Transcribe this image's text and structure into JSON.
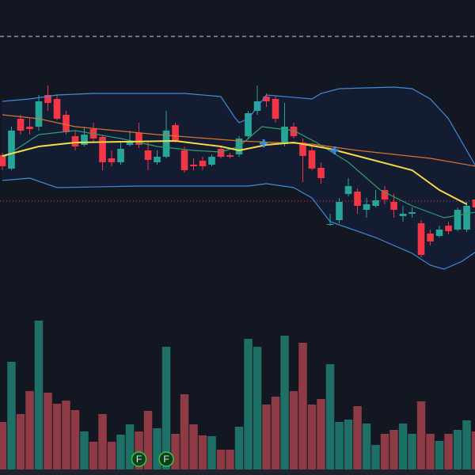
{
  "chart_data": {
    "type": "candlestick",
    "xlim": [
      -0.26,
      51.91
    ],
    "ylim": [
      0,
      600
    ],
    "up_color": "#26a69a",
    "down_color": "#f23645",
    "volume_up_color": "#1e6f66",
    "volume_down_color": "#8e3b45",
    "open": [
      404,
      387,
      450,
      440,
      440,
      480,
      475,
      455,
      428,
      417,
      437,
      427,
      400,
      395,
      417,
      432,
      410,
      395,
      402,
      442,
      410,
      392,
      397,
      392,
      412,
      404,
      405,
      428,
      460,
      478,
      475,
      418,
      440,
      420,
      410,
      388,
      317,
      322,
      355,
      358,
      335,
      340,
      360,
      345,
      327,
      330,
      318,
      305,
      302,
      315,
      310,
      310,
      348
    ],
    "high": [
      407,
      440,
      455,
      450,
      480,
      492,
      480,
      460,
      435,
      440,
      445,
      430,
      410,
      420,
      435,
      445,
      420,
      410,
      460,
      445,
      415,
      400,
      402,
      405,
      415,
      407,
      428,
      460,
      492,
      482,
      478,
      470,
      445,
      425,
      415,
      395,
      330,
      350,
      375,
      362,
      350,
      360,
      365,
      355,
      340,
      338,
      322,
      310,
      315,
      320,
      338,
      345,
      352
    ],
    "low": [
      385,
      385,
      430,
      430,
      435,
      460,
      448,
      430,
      410,
      415,
      420,
      385,
      390,
      392,
      415,
      413,
      385,
      392,
      400,
      420,
      382,
      385,
      385,
      390,
      400,
      400,
      402,
      425,
      455,
      465,
      445,
      415,
      425,
      370,
      385,
      368,
      315,
      318,
      352,
      330,
      325,
      338,
      342,
      325,
      320,
      325,
      275,
      290,
      300,
      304,
      308,
      307,
      334
    ],
    "close": [
      390,
      435,
      435,
      437,
      472,
      470,
      450,
      433,
      415,
      430,
      425,
      395,
      395,
      412,
      422,
      417,
      398,
      402,
      435,
      422,
      385,
      390,
      390,
      402,
      402,
      402,
      425,
      457,
      472,
      472,
      450,
      440,
      428,
      403,
      387,
      375,
      317,
      345,
      365,
      340,
      342,
      347,
      348,
      335,
      330,
      332,
      278,
      295,
      310,
      308,
      335,
      340,
      338
    ],
    "volume": [
      60,
      136,
      70,
      99,
      188,
      97,
      83,
      87,
      75,
      48,
      35,
      70,
      35,
      44,
      57,
      48,
      74,
      52,
      155,
      45,
      95,
      57,
      43,
      42,
      25,
      25,
      54,
      165,
      155,
      82,
      92,
      169,
      99,
      160,
      82,
      89,
      133,
      60,
      63,
      80,
      58,
      31,
      45,
      50,
      58,
      45,
      86,
      45,
      36,
      45,
      50,
      62,
      48
    ],
    "volume_ylim": [
      0,
      200
    ],
    "lines": [
      {
        "color": "#3d8bd9",
        "x": [
          0,
          3,
          6,
          10,
          20,
          24,
          25.5,
          26,
          27,
          29,
          34,
          35,
          37,
          43,
          45,
          47,
          49,
          51,
          52
        ],
        "values": [
          472,
          475,
          480,
          482,
          482,
          478,
          452,
          445,
          450,
          480,
          475,
          482,
          488,
          490,
          488,
          475,
          450,
          410,
          390
        ]
      },
      {
        "color": "#3d8bd9",
        "x": [
          0,
          3,
          6,
          15,
          27,
          29,
          32,
          34,
          36,
          41,
          45,
          47,
          48.5,
          50.5,
          52
        ],
        "values": [
          372,
          375,
          363,
          365,
          365,
          368,
          363,
          350,
          320,
          300,
          280,
          265,
          260,
          270,
          282
        ]
      },
      {
        "color": "#2e9e6e",
        "x": [
          0,
          4,
          8,
          13,
          15,
          17,
          21,
          24,
          26,
          28.5,
          32,
          34.5,
          38,
          41.5,
          45,
          48.5,
          52
        ],
        "values": [
          400,
          430,
          435,
          425,
          420,
          415,
          410,
          408,
          415,
          440,
          435,
          420,
          395,
          360,
          340,
          325,
          332
        ]
      },
      {
        "color": "#d9732e",
        "x": [
          0,
          4,
          8,
          17,
          26,
          34,
          39,
          47,
          52
        ],
        "values": [
          455,
          450,
          440,
          430,
          422,
          418,
          410,
          400,
          390
        ]
      },
      {
        "color": "#f5d94a",
        "x": [
          0,
          4,
          8,
          19,
          24,
          26,
          29,
          32,
          36,
          40,
          45,
          48,
          51
        ],
        "values": [
          403,
          415,
          420,
          422,
          415,
          410,
          417,
          420,
          412,
          400,
          385,
          360,
          342
        ]
      }
    ],
    "markers": {
      "color": "#3d8bd9",
      "x": [
        28.7,
        36.5
      ],
      "values": [
        419,
        410
      ]
    },
    "hlines": [
      {
        "value": 554,
        "color": "#c8ccd6",
        "dash": "5,4"
      },
      {
        "value": 346,
        "color": "#f23645",
        "dash": "1,3"
      }
    ],
    "events": {
      "x": [
        15,
        18
      ],
      "labels": [
        "F",
        "F"
      ]
    }
  }
}
